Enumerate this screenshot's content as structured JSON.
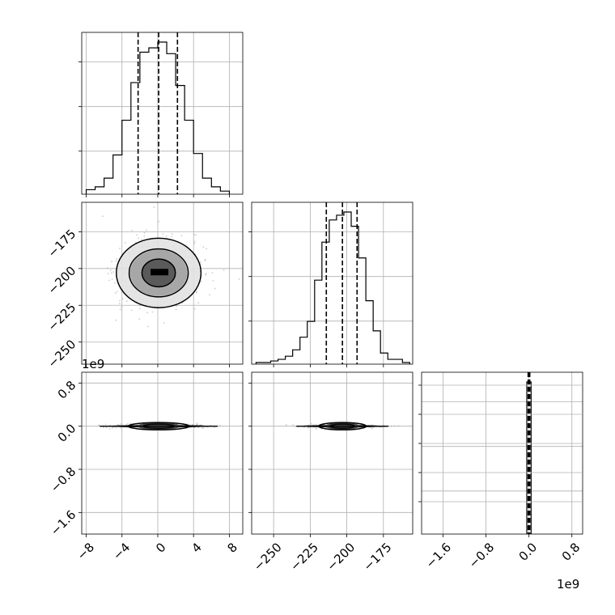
{
  "chart_data": [
    {
      "type": "histogram",
      "panel": "param-1 marginal",
      "xlim": [
        -8.5,
        9.5
      ],
      "x_ticks": [
        -8,
        -4,
        0,
        4,
        8
      ],
      "bins": [
        -8,
        -7,
        -6,
        -5,
        -4,
        -3,
        -2,
        -1,
        0,
        1,
        2,
        3,
        4,
        5,
        6,
        7,
        8
      ],
      "counts": [
        0.02,
        0.04,
        0.1,
        0.26,
        0.5,
        0.76,
        0.97,
        1.0,
        1.04,
        0.96,
        0.74,
        0.5,
        0.27,
        0.1,
        0.04,
        0.01
      ],
      "quantiles": [
        -2.2,
        0.1,
        2.2
      ],
      "grid": true
    },
    {
      "type": "histogram",
      "panel": "param-2 marginal",
      "xlim": [
        -265,
        -155
      ],
      "x_ticks": [
        -250,
        -225,
        -200,
        -175
      ],
      "bins": [
        -262,
        -257,
        -252,
        -247,
        -242,
        -237,
        -232,
        -227,
        -222,
        -217,
        -212,
        -207,
        -202,
        -197,
        -192,
        -187,
        -182,
        -177,
        -172,
        -167,
        -162,
        -157
      ],
      "counts": [
        0.0,
        0.0,
        0.01,
        0.02,
        0.04,
        0.08,
        0.16,
        0.26,
        0.52,
        0.76,
        0.9,
        0.93,
        0.95,
        0.86,
        0.66,
        0.39,
        0.2,
        0.06,
        0.02,
        0.02,
        0.0
      ],
      "quantiles": [
        -214,
        -203,
        -193
      ],
      "grid": true
    },
    {
      "type": "histogram",
      "panel": "param-3 marginal",
      "xlim": [
        -2.0,
        1.0
      ],
      "x_ticks": [
        -1.6,
        -0.8,
        0.0,
        0.8
      ],
      "x_scale_label": "1e9",
      "bins": [
        -0.04,
        0.0,
        0.04
      ],
      "counts": [
        1.0,
        1.0
      ],
      "quantiles": [
        -0.015,
        0.0,
        0.015
      ],
      "grid": true
    },
    {
      "type": "scatter",
      "panel": "param-2 vs param-1",
      "xlim": [
        -8.5,
        9.5
      ],
      "ylim": [
        -265,
        -155
      ],
      "y_ticks": [
        -175,
        -200,
        -225,
        -250
      ],
      "center": [
        0.1,
        -203
      ],
      "spread": [
        2.2,
        10.5
      ],
      "contours": true,
      "grid": true
    },
    {
      "type": "scatter",
      "panel": "param-3 vs param-1",
      "xlim": [
        -8.5,
        9.5
      ],
      "ylim": [
        -2.0,
        1.0
      ],
      "y_ticks": [
        0.8,
        0.0,
        -0.8,
        -1.6
      ],
      "y_scale_label": "1e9",
      "center": [
        0.1,
        0.0
      ],
      "spread": [
        2.2,
        0.02
      ],
      "contours": true,
      "grid": true
    },
    {
      "type": "scatter",
      "panel": "param-3 vs param-2",
      "xlim": [
        -265,
        -155
      ],
      "ylim": [
        -2.0,
        1.0
      ],
      "center": [
        -203,
        0.0
      ],
      "spread": [
        10.5,
        0.02
      ],
      "contours": true,
      "grid": true
    }
  ]
}
